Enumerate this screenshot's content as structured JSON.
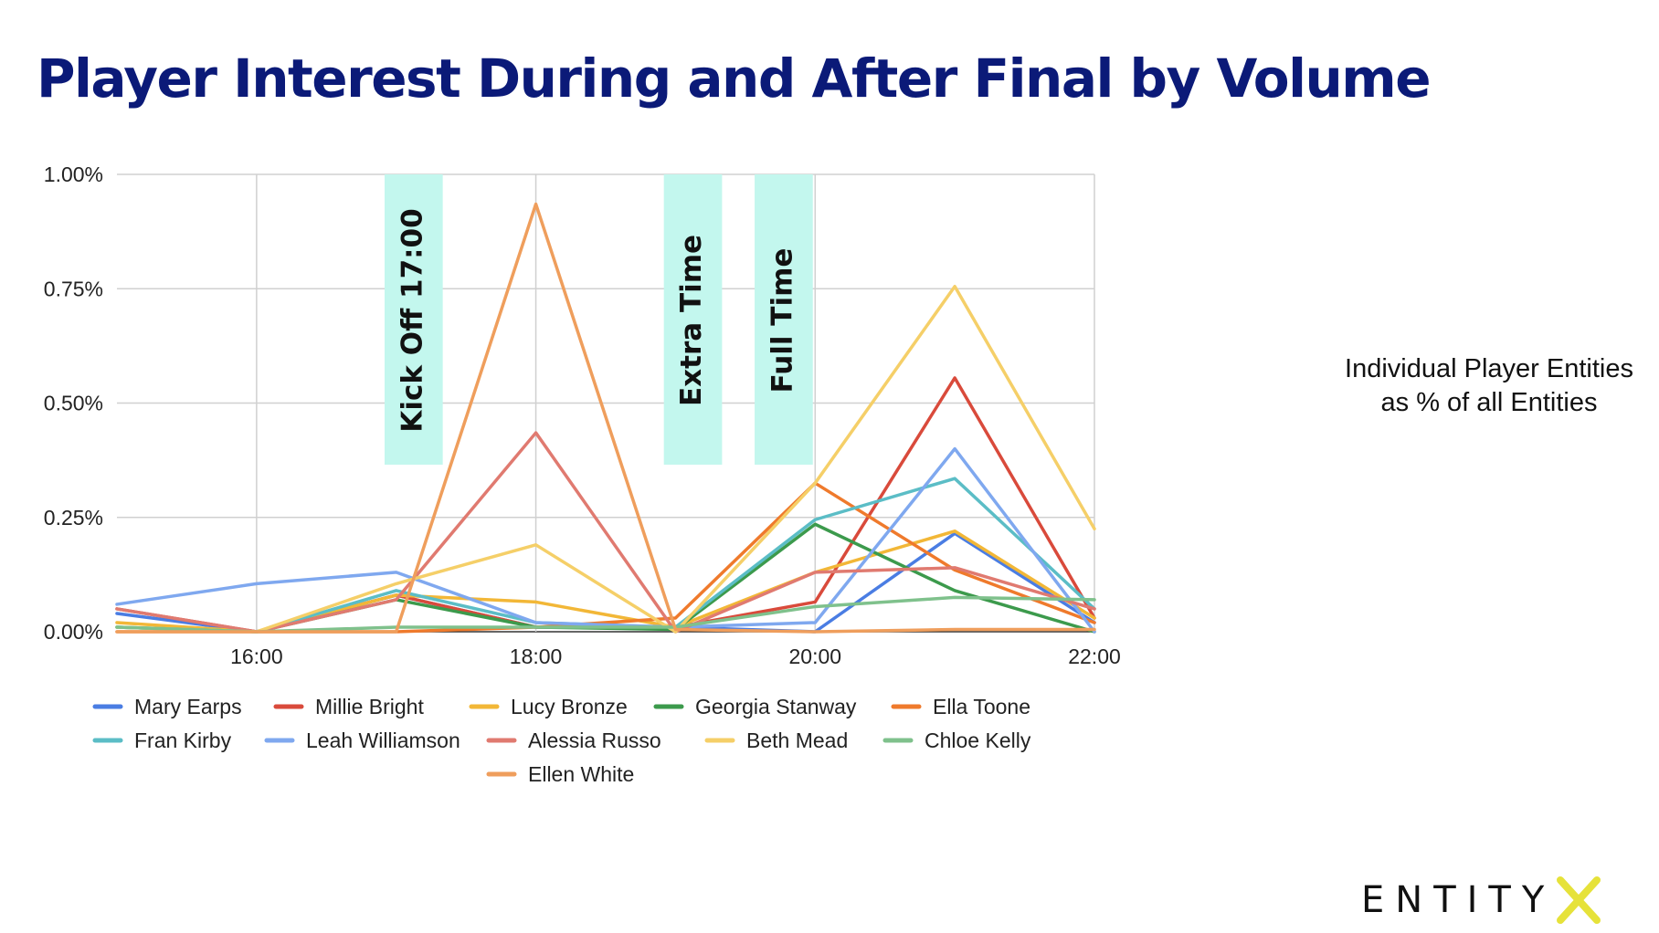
{
  "title": "Player Interest During and After Final by Volume",
  "side_note": "Individual Player Entities as % of all Entities",
  "logo": {
    "text": "ENTITY",
    "mark": "X",
    "accent": "#e6e23a"
  },
  "chart_data": {
    "type": "line",
    "x": [
      "15:00",
      "16:00",
      "17:00",
      "18:00",
      "19:00",
      "20:00",
      "21:00",
      "22:00"
    ],
    "x_ticks": [
      "16:00",
      "18:00",
      "20:00",
      "22:00"
    ],
    "xlim": [
      "15:00",
      "22:00"
    ],
    "y_ticks": [
      "0.00%",
      "0.25%",
      "0.50%",
      "0.75%",
      "1.00%"
    ],
    "ylim": [
      0,
      1.0
    ],
    "y_unit": "%",
    "grid": true,
    "legend_position": "bottom",
    "annotations": [
      {
        "label": "Kick Off 17:00",
        "from": "16:55",
        "to": "17:20",
        "color": "#c3f7ee"
      },
      {
        "label": "Extra Time",
        "from": "18:55",
        "to": "19:20",
        "color": "#c3f7ee"
      },
      {
        "label": "Full Time",
        "from": "19:34",
        "to": "19:59",
        "color": "#c3f7ee"
      }
    ],
    "series": [
      {
        "name": "Mary Earps",
        "color": "#4a7de3",
        "values": [
          0.04,
          0.0,
          0.08,
          0.01,
          0.01,
          0.0,
          0.215,
          0.02
        ]
      },
      {
        "name": "Millie Bright",
        "color": "#d94a3b",
        "values": [
          0.05,
          0.0,
          0.08,
          0.01,
          0.01,
          0.065,
          0.555,
          0.03
        ]
      },
      {
        "name": "Lucy Bronze",
        "color": "#f2b737",
        "values": [
          0.02,
          0.0,
          0.08,
          0.065,
          0.01,
          0.13,
          0.22,
          0.03
        ]
      },
      {
        "name": "Georgia Stanway",
        "color": "#3c9a4c",
        "values": [
          0.01,
          0.0,
          0.07,
          0.01,
          0.005,
          0.235,
          0.09,
          0.0
        ]
      },
      {
        "name": "Ella Toone",
        "color": "#ef7a2c",
        "values": [
          0.0,
          0.0,
          0.0,
          0.01,
          0.03,
          0.325,
          0.135,
          0.02
        ]
      },
      {
        "name": "Fran Kirby",
        "color": "#5bbdc6",
        "values": [
          0.01,
          0.0,
          0.09,
          0.02,
          0.01,
          0.245,
          0.335,
          0.05
        ]
      },
      {
        "name": "Leah Williamson",
        "color": "#7fa8ef",
        "values": [
          0.06,
          0.105,
          0.13,
          0.02,
          0.01,
          0.02,
          0.4,
          0.0
        ]
      },
      {
        "name": "Alessia Russo",
        "color": "#e07a70",
        "values": [
          0.05,
          0.0,
          0.07,
          0.435,
          0.0,
          0.13,
          0.14,
          0.05
        ]
      },
      {
        "name": "Beth Mead",
        "color": "#f5cf68",
        "values": [
          0.01,
          0.0,
          0.105,
          0.19,
          0.0,
          0.325,
          0.755,
          0.225
        ]
      },
      {
        "name": "Chloe Kelly",
        "color": "#7fc18c",
        "values": [
          0.01,
          0.0,
          0.01,
          0.01,
          0.01,
          0.055,
          0.075,
          0.07
        ]
      },
      {
        "name": "Ellen White",
        "color": "#ef9e5c",
        "values": [
          0.0,
          0.0,
          0.0,
          0.935,
          0.005,
          0.0,
          0.005,
          0.005
        ]
      }
    ]
  }
}
